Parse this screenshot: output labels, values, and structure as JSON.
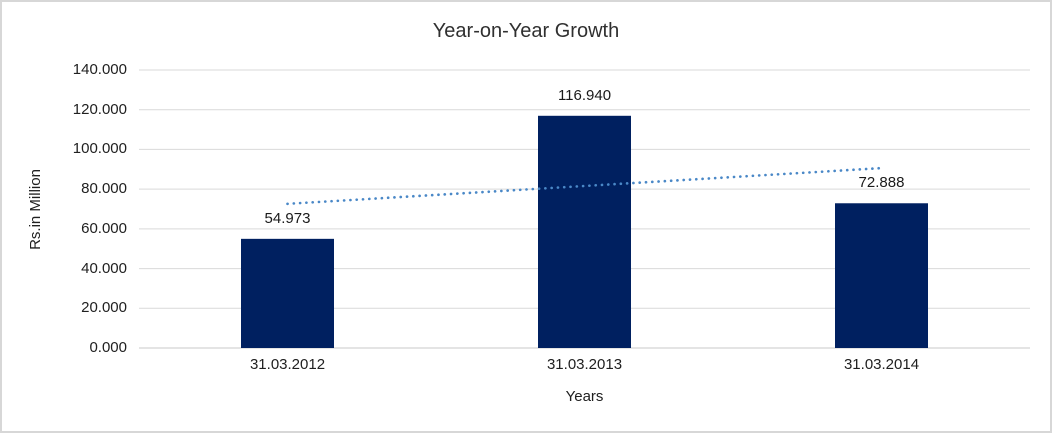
{
  "chart_data": {
    "type": "bar",
    "title": "Year-on-Year Growth",
    "xlabel": "Years",
    "ylabel": "Rs.in Million",
    "categories": [
      "31.03.2012",
      "31.03.2013",
      "31.03.2014"
    ],
    "values": [
      54.973,
      116.94,
      72.888
    ],
    "value_labels": [
      "54.973",
      "116.940",
      "72.888"
    ],
    "ylim": [
      0,
      140
    ],
    "y_tick_step": 20,
    "y_tick_labels": [
      "0.000",
      "20.000",
      "40.000",
      "60.000",
      "80.000",
      "100.000",
      "120.000",
      "140.000"
    ],
    "grid": true,
    "legend": "none",
    "colors": {
      "bar": "#002060",
      "trendline": "#4a88c7",
      "gridline": "#d9d9d9",
      "axis_line": "#c9c9c9",
      "text": "#202020"
    },
    "trendline": {
      "type": "linear",
      "style": "dotted",
      "y_start": 72.6,
      "y_end": 90.6
    }
  }
}
